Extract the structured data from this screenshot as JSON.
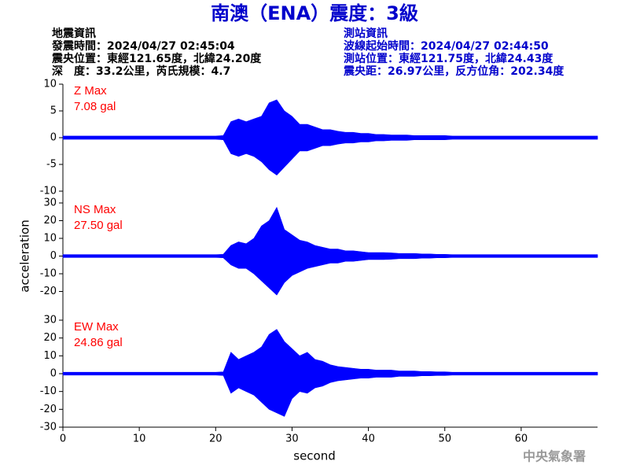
{
  "title": "南澳（ENA）震度：3級",
  "info_left": [
    "地震資訊",
    "發震時間：2024/04/27 02:45:04",
    "震央位置：東經121.65度，北緯24.20度",
    "深　度：33.2公里，芮氏規模：4.7"
  ],
  "info_right": [
    "測站資訊",
    "波線起始時間：2024/04/27 02:44:50",
    "測站位置：東經121.75度，北緯24.43度",
    "震央距：26.97公里，反方位角：202.34度"
  ],
  "footer": "中央氣象署",
  "chart_data": [
    {
      "type": "area",
      "annotations": [
        "Z Max",
        "7.08 gal"
      ],
      "annotation_color": "#ff0000",
      "xlim": [
        0,
        70
      ],
      "ylim": [
        -10,
        10
      ],
      "yticks": [
        -10,
        -5,
        0,
        5,
        10
      ],
      "x": [
        0,
        1,
        2,
        3,
        4,
        5,
        6,
        7,
        8,
        9,
        10,
        11,
        12,
        13,
        14,
        15,
        16,
        17,
        18,
        19,
        20,
        21,
        22,
        23,
        24,
        25,
        26,
        27,
        28,
        29,
        30,
        31,
        32,
        33,
        34,
        35,
        36,
        37,
        38,
        39,
        40,
        41,
        42,
        43,
        44,
        45,
        46,
        47,
        48,
        49,
        50,
        51,
        52,
        53,
        54,
        55,
        56,
        57,
        58,
        59,
        60,
        61,
        62,
        63,
        64,
        65,
        66,
        67,
        68,
        69,
        70
      ],
      "series": [
        {
          "color": "#0000ff",
          "values": [
            0.3,
            0.3,
            0.3,
            0.3,
            0.3,
            0.3,
            0.3,
            0.3,
            0.3,
            0.3,
            0.3,
            0.3,
            0.3,
            0.3,
            0.3,
            0.3,
            0.3,
            0.3,
            0.3,
            0.3,
            0.3,
            0.4,
            3,
            3.5,
            3,
            3.5,
            4,
            6.5,
            7.08,
            5,
            4,
            2.5,
            2.5,
            2,
            1.5,
            1.5,
            1.2,
            1,
            1,
            0.8,
            0.8,
            0.6,
            0.6,
            0.5,
            0.5,
            0.5,
            0.4,
            0.4,
            0.4,
            0.4,
            0.4,
            0.3,
            0.3,
            0.3,
            0.3,
            0.3,
            0.3,
            0.3,
            0.3,
            0.3,
            0.3,
            0.3,
            0.3,
            0.3,
            0.3,
            0.3,
            0.3,
            0.3,
            0.3,
            0.3,
            0.3
          ]
        },
        {
          "color": "#0000ff",
          "values": [
            -0.3,
            -0.3,
            -0.3,
            -0.3,
            -0.3,
            -0.3,
            -0.3,
            -0.3,
            -0.3,
            -0.3,
            -0.3,
            -0.3,
            -0.3,
            -0.3,
            -0.3,
            -0.3,
            -0.3,
            -0.3,
            -0.3,
            -0.3,
            -0.3,
            -0.4,
            -3,
            -3.5,
            -3,
            -3.5,
            -4.5,
            -6,
            -7,
            -5.5,
            -4,
            -2.5,
            -2.5,
            -2,
            -1.5,
            -1.5,
            -1.2,
            -1,
            -1,
            -0.8,
            -0.8,
            -0.6,
            -0.6,
            -0.5,
            -0.5,
            -0.5,
            -0.4,
            -0.4,
            -0.4,
            -0.4,
            -0.4,
            -0.3,
            -0.3,
            -0.3,
            -0.3,
            -0.3,
            -0.3,
            -0.3,
            -0.3,
            -0.3,
            -0.3,
            -0.3,
            -0.3,
            -0.3,
            -0.3,
            -0.3,
            -0.3,
            -0.3,
            -0.3,
            -0.3,
            -0.3
          ]
        }
      ]
    },
    {
      "type": "area",
      "annotations": [
        "NS Max",
        "27.50 gal"
      ],
      "annotation_color": "#ff0000",
      "y_label": "acceleration",
      "xlim": [
        0,
        70
      ],
      "ylim": [
        -30,
        30
      ],
      "yticks": [
        -20,
        -10,
        0,
        10,
        20,
        30
      ],
      "x": [
        0,
        1,
        2,
        3,
        4,
        5,
        6,
        7,
        8,
        9,
        10,
        11,
        12,
        13,
        14,
        15,
        16,
        17,
        18,
        19,
        20,
        21,
        22,
        23,
        24,
        25,
        26,
        27,
        28,
        29,
        30,
        31,
        32,
        33,
        34,
        35,
        36,
        37,
        38,
        39,
        40,
        41,
        42,
        43,
        44,
        45,
        46,
        47,
        48,
        49,
        50,
        51,
        52,
        53,
        54,
        55,
        56,
        57,
        58,
        59,
        60,
        61,
        62,
        63,
        64,
        65,
        66,
        67,
        68,
        69,
        70
      ],
      "series": [
        {
          "color": "#0000ff",
          "values": [
            0.8,
            0.8,
            0.8,
            0.8,
            0.8,
            0.8,
            0.8,
            0.8,
            0.8,
            0.8,
            0.8,
            0.8,
            0.8,
            0.8,
            0.8,
            0.8,
            0.8,
            0.8,
            0.8,
            0.8,
            0.8,
            1,
            6,
            8,
            7,
            10,
            17,
            20,
            27.5,
            15,
            12,
            9,
            8,
            6,
            5,
            4,
            4,
            3,
            3,
            2.5,
            2,
            2,
            2,
            1.8,
            1.5,
            1.5,
            1.5,
            1.2,
            1.2,
            1,
            1,
            0.8,
            0.8,
            0.8,
            0.8,
            0.8,
            0.8,
            0.8,
            0.8,
            0.8,
            0.8,
            0.8,
            0.8,
            0.8,
            0.8,
            0.8,
            0.8,
            0.8,
            0.8,
            0.8,
            0.8
          ]
        },
        {
          "color": "#0000ff",
          "values": [
            -0.8,
            -0.8,
            -0.8,
            -0.8,
            -0.8,
            -0.8,
            -0.8,
            -0.8,
            -0.8,
            -0.8,
            -0.8,
            -0.8,
            -0.8,
            -0.8,
            -0.8,
            -0.8,
            -0.8,
            -0.8,
            -0.8,
            -0.8,
            -0.8,
            -1,
            -5,
            -7,
            -7,
            -10,
            -14,
            -18,
            -22,
            -15,
            -11,
            -9,
            -7,
            -6,
            -5,
            -4,
            -4,
            -3,
            -3,
            -2.5,
            -2,
            -2,
            -2,
            -1.8,
            -1.5,
            -1.5,
            -1.5,
            -1.2,
            -1.2,
            -1,
            -1,
            -0.8,
            -0.8,
            -0.8,
            -0.8,
            -0.8,
            -0.8,
            -0.8,
            -0.8,
            -0.8,
            -0.8,
            -0.8,
            -0.8,
            -0.8,
            -0.8,
            -0.8,
            -0.8,
            -0.8,
            -0.8,
            -0.8,
            -0.8
          ]
        }
      ]
    },
    {
      "type": "area",
      "annotations": [
        "EW Max",
        "24.86 gal"
      ],
      "annotation_color": "#ff0000",
      "x_label": "second",
      "xlim": [
        0,
        70
      ],
      "xticks": [
        0,
        10,
        20,
        30,
        40,
        50,
        60
      ],
      "ylim": [
        -30,
        30
      ],
      "yticks": [
        -30,
        -20,
        -10,
        0,
        10,
        20,
        30
      ],
      "x": [
        0,
        1,
        2,
        3,
        4,
        5,
        6,
        7,
        8,
        9,
        10,
        11,
        12,
        13,
        14,
        15,
        16,
        17,
        18,
        19,
        20,
        21,
        22,
        23,
        24,
        25,
        26,
        27,
        28,
        29,
        30,
        31,
        32,
        33,
        34,
        35,
        36,
        37,
        38,
        39,
        40,
        41,
        42,
        43,
        44,
        45,
        46,
        47,
        48,
        49,
        50,
        51,
        52,
        53,
        54,
        55,
        56,
        57,
        58,
        59,
        60,
        61,
        62,
        63,
        64,
        65,
        66,
        67,
        68,
        69,
        70
      ],
      "series": [
        {
          "color": "#0000ff",
          "values": [
            0.8,
            0.8,
            0.8,
            0.8,
            0.8,
            0.8,
            0.8,
            0.8,
            0.8,
            0.8,
            0.8,
            0.8,
            0.8,
            0.8,
            0.8,
            0.8,
            0.8,
            0.8,
            0.8,
            0.8,
            0.8,
            1,
            12,
            8,
            10,
            12,
            15,
            22,
            24.86,
            18,
            14,
            10,
            12,
            8,
            7,
            5,
            4,
            3.5,
            3,
            2.5,
            2.5,
            2,
            2,
            2,
            1.5,
            1.5,
            1.5,
            1.2,
            1.2,
            1,
            1,
            0.8,
            0.8,
            0.8,
            0.8,
            0.8,
            0.8,
            0.8,
            0.8,
            0.8,
            0.8,
            0.8,
            0.8,
            0.8,
            0.8,
            0.8,
            0.8,
            0.8,
            0.8,
            0.8,
            0.8
          ]
        },
        {
          "color": "#0000ff",
          "values": [
            -0.8,
            -0.8,
            -0.8,
            -0.8,
            -0.8,
            -0.8,
            -0.8,
            -0.8,
            -0.8,
            -0.8,
            -0.8,
            -0.8,
            -0.8,
            -0.8,
            -0.8,
            -0.8,
            -0.8,
            -0.8,
            -0.8,
            -0.8,
            -0.8,
            -1,
            -11,
            -8,
            -10,
            -12,
            -16,
            -20,
            -22,
            -24,
            -14,
            -10,
            -11,
            -8,
            -7,
            -5,
            -4,
            -3.5,
            -3,
            -2.5,
            -2.5,
            -2,
            -2,
            -2,
            -1.5,
            -1.5,
            -1.5,
            -1.2,
            -1.2,
            -1,
            -1,
            -0.8,
            -0.8,
            -0.8,
            -0.8,
            -0.8,
            -0.8,
            -0.8,
            -0.8,
            -0.8,
            -0.8,
            -0.8,
            -0.8,
            -0.8,
            -0.8,
            -0.8,
            -0.8,
            -0.8,
            -0.8,
            -0.8,
            -0.8
          ]
        }
      ]
    }
  ]
}
